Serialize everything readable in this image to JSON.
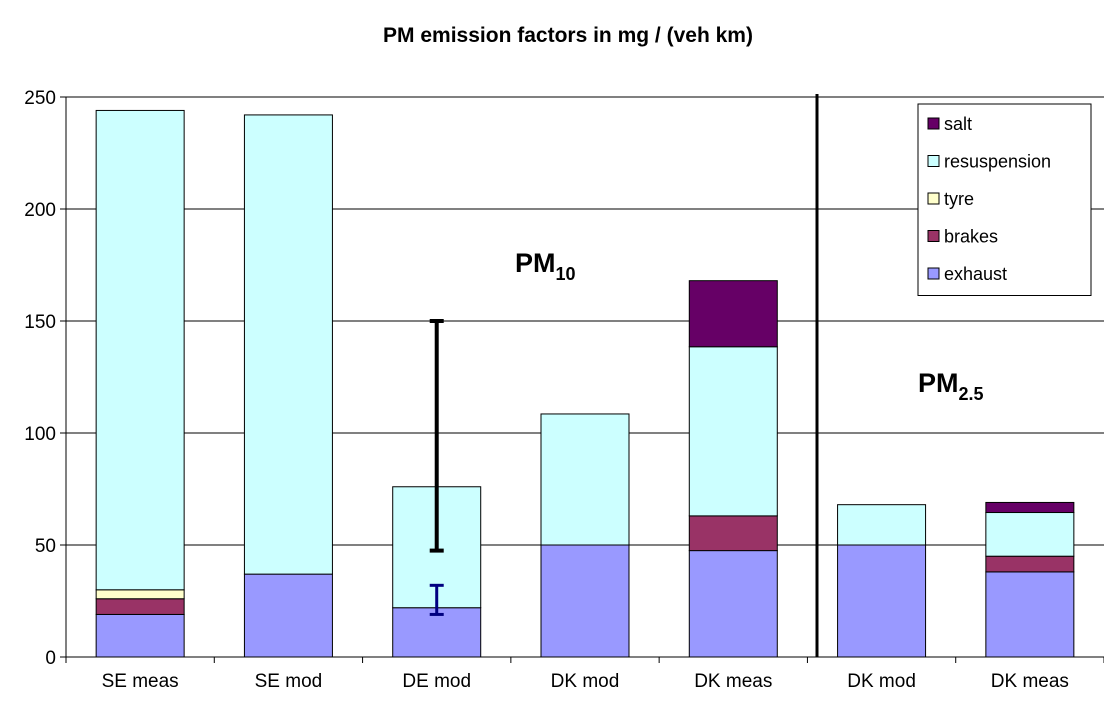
{
  "chart_data": {
    "type": "stacked_bar",
    "title": "PM emission factors in mg / (veh km)",
    "categories": [
      "SE meas",
      "SE mod",
      "DE mod",
      "DK mod",
      "DK meas",
      "DK mod",
      "DK meas"
    ],
    "series": [
      {
        "name": "exhaust",
        "color": "#9999ff",
        "values": [
          19,
          37,
          22,
          50,
          47.5,
          50,
          38
        ]
      },
      {
        "name": "brakes",
        "color": "#993366",
        "values": [
          7,
          0,
          0,
          0,
          15.5,
          0,
          7
        ]
      },
      {
        "name": "tyre",
        "color": "#ffffcc",
        "values": [
          4,
          0,
          0,
          0,
          0,
          0,
          0
        ]
      },
      {
        "name": "resuspension",
        "color": "#ccffff",
        "values": [
          214,
          205,
          54,
          58.5,
          75.5,
          18,
          19.5
        ]
      },
      {
        "name": "salt",
        "color": "#660066",
        "values": [
          0,
          0,
          0,
          0,
          29.5,
          0,
          4.5
        ]
      }
    ],
    "error_bars": [
      {
        "category": 2,
        "low": 47.5,
        "high": 150,
        "color": "#000000"
      },
      {
        "category": 2,
        "low": 19,
        "high": 32,
        "color": "#000080"
      }
    ],
    "annotations": [
      {
        "text": "PM",
        "sub": "10"
      },
      {
        "text": "PM",
        "sub": "2.5"
      }
    ],
    "ylim": [
      0,
      250
    ],
    "yticks": [
      0,
      50,
      100,
      150,
      200,
      250
    ],
    "grid": true,
    "legend": "upper right"
  }
}
